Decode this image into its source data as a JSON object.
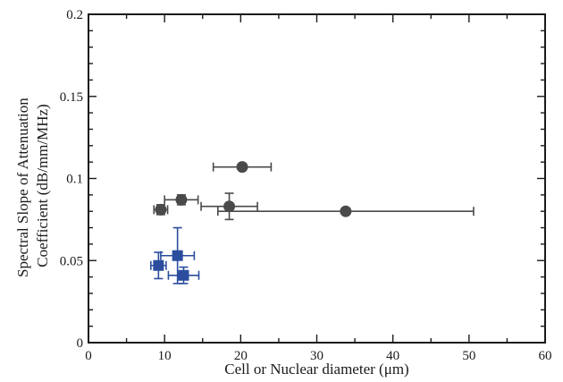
{
  "chart_data": {
    "type": "scatter",
    "title": "",
    "xlabel": "Cell or Nuclear diameter (μm)",
    "ylabel": [
      "Spectral Slope of Attenuation",
      "Coefficient (dB/mm/MHz)"
    ],
    "xlim": [
      0,
      60
    ],
    "ylim": [
      0,
      0.2
    ],
    "x_ticks": [
      0,
      10,
      20,
      30,
      40,
      50,
      60
    ],
    "y_ticks": [
      0,
      0.05,
      0.1,
      0.15,
      0.2
    ],
    "x_tick_labels": [
      "0",
      "10",
      "20",
      "30",
      "40",
      "50",
      "60"
    ],
    "y_tick_labels": [
      "0",
      "0.05",
      "0.1",
      "0.15",
      "0.2"
    ],
    "grid": false,
    "legend": null,
    "series": [
      {
        "marker": "circle",
        "color": "#4a4a4a",
        "points": [
          {
            "x": 20.2,
            "y": 0.107,
            "xerr": 3.8,
            "yerr": 0
          },
          {
            "x": 12.2,
            "y": 0.087,
            "xerr": 2.2,
            "yerr": 0.003
          },
          {
            "x": 18.5,
            "y": 0.083,
            "xerr": 3.7,
            "yerr": 0.008
          },
          {
            "x": 9.5,
            "y": 0.081,
            "xerr": 0.9,
            "yerr": 0.003
          },
          {
            "x": 33.8,
            "y": 0.08,
            "xerr": 16.8,
            "yerr": 0
          }
        ]
      },
      {
        "marker": "square",
        "color": "#2b4d9e",
        "points": [
          {
            "x": 11.7,
            "y": 0.053,
            "xerr": 2.2,
            "yerr": 0.017
          },
          {
            "x": 9.2,
            "y": 0.047,
            "xerr": 1.0,
            "yerr": 0.008
          },
          {
            "x": 12.5,
            "y": 0.041,
            "xerr": 2.0,
            "yerr": 0.005
          }
        ]
      }
    ]
  }
}
